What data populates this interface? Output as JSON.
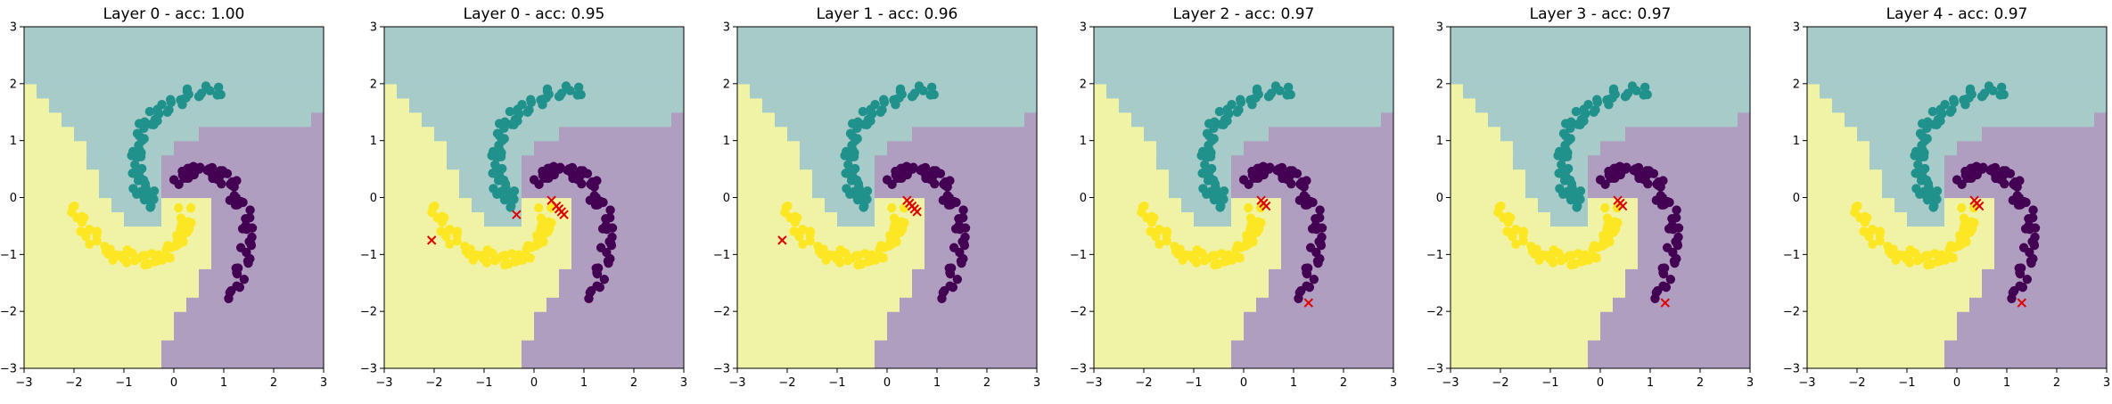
{
  "figure": {
    "colors": {
      "class0": "#440154",
      "class1": "#21918c",
      "class2": "#fde725",
      "region0": "#b09ec0",
      "region1": "#a6cbc9",
      "region2": "#f0f3a6",
      "error": "#e00000"
    }
  },
  "chart_data": [
    {
      "type": "scatter",
      "title": "Layer 0 - acc: 1.00",
      "xlim": [
        -3,
        3
      ],
      "ylim": [
        -3,
        3
      ],
      "xticks": [
        "−3",
        "−2",
        "−1",
        "0",
        "1",
        "2",
        "3"
      ],
      "yticks": [
        "−3",
        "−2",
        "−1",
        "0",
        "1",
        "2",
        "3"
      ],
      "accuracy": 1.0,
      "errors": [],
      "dataset": "three-arm spiral: purple arm from (0,0.6) curving right/down to (1.3,-1.8); teal arm from (0,-0.3) curving up/left to (0.3,2.2); yellow arm from (0.5,0) curving down/left to (-2,-0.8)"
    },
    {
      "type": "scatter",
      "title": "Layer 0 - acc: 0.95",
      "xlim": [
        -3,
        3
      ],
      "ylim": [
        -3,
        3
      ],
      "xticks": [
        "−3",
        "−2",
        "−1",
        "0",
        "1",
        "2",
        "3"
      ],
      "yticks": [
        "−3",
        "−2",
        "−1",
        "0",
        "1",
        "2",
        "3"
      ],
      "accuracy": 0.95,
      "errors": [
        [
          -2.05,
          -0.75
        ],
        [
          -0.35,
          -0.3
        ],
        [
          0.35,
          -0.05
        ],
        [
          0.45,
          -0.15
        ],
        [
          0.5,
          -0.2
        ],
        [
          0.55,
          -0.25
        ],
        [
          0.6,
          -0.3
        ]
      ]
    },
    {
      "type": "scatter",
      "title": "Layer 1 - acc: 0.96",
      "xlim": [
        -3,
        3
      ],
      "ylim": [
        -3,
        3
      ],
      "xticks": [
        "−3",
        "−2",
        "−1",
        "0",
        "1",
        "2",
        "3"
      ],
      "yticks": [
        "−3",
        "−2",
        "−1",
        "0",
        "1",
        "2",
        "3"
      ],
      "accuracy": 0.96,
      "errors": [
        [
          -2.1,
          -0.75
        ],
        [
          0.4,
          -0.05
        ],
        [
          0.45,
          -0.1
        ],
        [
          0.5,
          -0.15
        ],
        [
          0.55,
          -0.2
        ],
        [
          0.6,
          -0.25
        ]
      ]
    },
    {
      "type": "scatter",
      "title": "Layer 2 - acc: 0.97",
      "xlim": [
        -3,
        3
      ],
      "ylim": [
        -3,
        3
      ],
      "xticks": [
        "−3",
        "−2",
        "−1",
        "0",
        "1",
        "2",
        "3"
      ],
      "yticks": [
        "−3",
        "−2",
        "−1",
        "0",
        "1",
        "2",
        "3"
      ],
      "accuracy": 0.97,
      "errors": [
        [
          0.35,
          -0.05
        ],
        [
          0.4,
          -0.1
        ],
        [
          0.45,
          -0.15
        ],
        [
          1.3,
          -1.85
        ]
      ]
    },
    {
      "type": "scatter",
      "title": "Layer 3 - acc: 0.97",
      "xlim": [
        -3,
        3
      ],
      "ylim": [
        -3,
        3
      ],
      "xticks": [
        "−3",
        "−2",
        "−1",
        "0",
        "1",
        "2",
        "3"
      ],
      "yticks": [
        "−3",
        "−2",
        "−1",
        "0",
        "1",
        "2",
        "3"
      ],
      "accuracy": 0.97,
      "errors": [
        [
          0.35,
          -0.05
        ],
        [
          0.4,
          -0.1
        ],
        [
          0.45,
          -0.15
        ],
        [
          1.3,
          -1.85
        ]
      ]
    },
    {
      "type": "scatter",
      "title": "Layer 4 - acc: 0.97",
      "xlim": [
        -3,
        3
      ],
      "ylim": [
        -3,
        3
      ],
      "xticks": [
        "−3",
        "−2",
        "−1",
        "0",
        "1",
        "2",
        "3"
      ],
      "yticks": [
        "−3",
        "−2",
        "−1",
        "0",
        "1",
        "2",
        "3"
      ],
      "accuracy": 0.97,
      "errors": [
        [
          0.35,
          -0.05
        ],
        [
          0.4,
          -0.1
        ],
        [
          0.45,
          -0.15
        ],
        [
          1.3,
          -1.85
        ]
      ]
    }
  ]
}
